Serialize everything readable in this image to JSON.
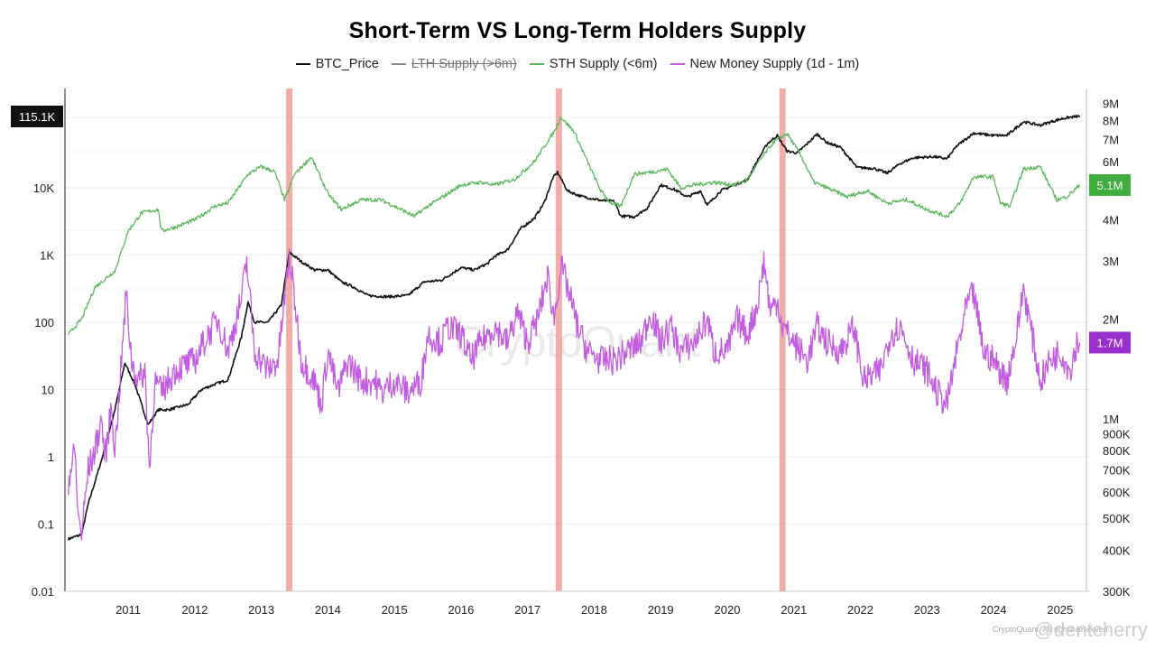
{
  "chart_data": {
    "type": "line",
    "title": "Short-Term VS Long-Term Holders Supply",
    "x_ticks": [
      "2011",
      "2012",
      "2013",
      "2014",
      "2015",
      "2016",
      "2017",
      "2018",
      "2019",
      "2020",
      "2021",
      "2022",
      "2023",
      "2024",
      "2025"
    ],
    "xlim": [
      2010.55,
      2025.95
    ],
    "y_left": {
      "scale": "log",
      "ylim": [
        0.01,
        300000
      ],
      "ticks": [
        {
          "v": 0.01,
          "label": "0.01"
        },
        {
          "v": 0.1,
          "label": "0.1"
        },
        {
          "v": 1,
          "label": "1"
        },
        {
          "v": 10,
          "label": "10"
        },
        {
          "v": 100,
          "label": "100"
        },
        {
          "v": 1000,
          "label": "1K"
        },
        {
          "v": 10000,
          "label": "10K"
        }
      ],
      "current_label": "115.1K",
      "current_value": 115100
    },
    "y_right": {
      "scale": "log",
      "ylim": [
        300000,
        10000000
      ],
      "ticks": [
        {
          "v": 300000,
          "label": "300K"
        },
        {
          "v": 400000,
          "label": "400K"
        },
        {
          "v": 500000,
          "label": "500K"
        },
        {
          "v": 600000,
          "label": "600K"
        },
        {
          "v": 700000,
          "label": "700K"
        },
        {
          "v": 800000,
          "label": "800K"
        },
        {
          "v": 900000,
          "label": "900K"
        },
        {
          "v": 1000000,
          "label": "1M"
        },
        {
          "v": 2000000,
          "label": "2M"
        },
        {
          "v": 3000000,
          "label": "3M"
        },
        {
          "v": 4000000,
          "label": "4M"
        },
        {
          "v": 6000000,
          "label": "6M"
        },
        {
          "v": 7000000,
          "label": "7M"
        },
        {
          "v": 8000000,
          "label": "8M"
        },
        {
          "v": 9000000,
          "label": "9M"
        }
      ]
    },
    "highlight_bands": [
      2013.92,
      2017.97,
      2021.33
    ],
    "series": [
      {
        "name": "BTC_Price",
        "axis": "left",
        "color": "#111111",
        "visible": true,
        "points": [
          [
            2010.6,
            0.06
          ],
          [
            2010.8,
            0.07
          ],
          [
            2010.9,
            0.2
          ],
          [
            2011.1,
            0.9
          ],
          [
            2011.3,
            5
          ],
          [
            2011.45,
            25
          ],
          [
            2011.6,
            12
          ],
          [
            2011.8,
            3
          ],
          [
            2011.95,
            5
          ],
          [
            2012.1,
            5
          ],
          [
            2012.4,
            6
          ],
          [
            2012.6,
            10
          ],
          [
            2012.8,
            12
          ],
          [
            2013.0,
            14
          ],
          [
            2013.2,
            60
          ],
          [
            2013.3,
            200
          ],
          [
            2013.4,
            100
          ],
          [
            2013.6,
            100
          ],
          [
            2013.8,
            180
          ],
          [
            2013.92,
            1100
          ],
          [
            2014.1,
            800
          ],
          [
            2014.3,
            600
          ],
          [
            2014.5,
            600
          ],
          [
            2014.7,
            400
          ],
          [
            2014.9,
            330
          ],
          [
            2015.1,
            250
          ],
          [
            2015.4,
            240
          ],
          [
            2015.7,
            250
          ],
          [
            2015.95,
            400
          ],
          [
            2016.2,
            420
          ],
          [
            2016.5,
            650
          ],
          [
            2016.7,
            600
          ],
          [
            2016.9,
            750
          ],
          [
            2017.0,
            950
          ],
          [
            2017.2,
            1200
          ],
          [
            2017.4,
            2500
          ],
          [
            2017.6,
            3500
          ],
          [
            2017.75,
            6000
          ],
          [
            2017.88,
            14000
          ],
          [
            2017.95,
            17000
          ],
          [
            2018.1,
            9000
          ],
          [
            2018.3,
            7500
          ],
          [
            2018.6,
            6500
          ],
          [
            2018.8,
            6300
          ],
          [
            2018.9,
            3800
          ],
          [
            2019.1,
            3700
          ],
          [
            2019.3,
            5000
          ],
          [
            2019.5,
            11000
          ],
          [
            2019.7,
            9500
          ],
          [
            2019.9,
            7300
          ],
          [
            2020.1,
            9000
          ],
          [
            2020.2,
            5500
          ],
          [
            2020.4,
            9000
          ],
          [
            2020.6,
            11000
          ],
          [
            2020.8,
            13000
          ],
          [
            2020.95,
            25000
          ],
          [
            2021.1,
            45000
          ],
          [
            2021.25,
            60000
          ],
          [
            2021.4,
            35000
          ],
          [
            2021.55,
            33000
          ],
          [
            2021.7,
            45000
          ],
          [
            2021.85,
            63000
          ],
          [
            2022.0,
            47000
          ],
          [
            2022.2,
            40000
          ],
          [
            2022.45,
            20000
          ],
          [
            2022.7,
            19500
          ],
          [
            2022.9,
            16500
          ],
          [
            2023.1,
            23000
          ],
          [
            2023.3,
            28000
          ],
          [
            2023.6,
            29000
          ],
          [
            2023.8,
            27000
          ],
          [
            2023.95,
            42000
          ],
          [
            2024.2,
            65000
          ],
          [
            2024.5,
            60000
          ],
          [
            2024.7,
            60000
          ],
          [
            2024.95,
            96000
          ],
          [
            2025.2,
            85000
          ],
          [
            2025.35,
            95000
          ],
          [
            2025.55,
            108000
          ],
          [
            2025.75,
            115100
          ],
          [
            2025.8,
            115100
          ]
        ]
      },
      {
        "name": "LTH Supply (>6m)",
        "axis": "right",
        "color": "#888888",
        "visible": false,
        "points": []
      },
      {
        "name": "STH Supply (<6m)",
        "axis": "right",
        "color": "#5cb85c",
        "visible": true,
        "points": [
          [
            2010.6,
            1800000
          ],
          [
            2010.8,
            2000000
          ],
          [
            2011.0,
            2500000
          ],
          [
            2011.3,
            2800000
          ],
          [
            2011.5,
            3700000
          ],
          [
            2011.7,
            4200000
          ],
          [
            2011.95,
            4300000
          ],
          [
            2012.0,
            3700000
          ],
          [
            2012.2,
            3800000
          ],
          [
            2012.5,
            4000000
          ],
          [
            2012.8,
            4400000
          ],
          [
            2013.0,
            4500000
          ],
          [
            2013.3,
            5500000
          ],
          [
            2013.5,
            5800000
          ],
          [
            2013.7,
            5600000
          ],
          [
            2013.85,
            4600000
          ],
          [
            2014.0,
            5500000
          ],
          [
            2014.25,
            6200000
          ],
          [
            2014.5,
            4800000
          ],
          [
            2014.7,
            4300000
          ],
          [
            2015.0,
            4600000
          ],
          [
            2015.3,
            4600000
          ],
          [
            2015.6,
            4300000
          ],
          [
            2015.8,
            4100000
          ],
          [
            2016.0,
            4400000
          ],
          [
            2016.3,
            4800000
          ],
          [
            2016.5,
            5100000
          ],
          [
            2016.8,
            5200000
          ],
          [
            2017.0,
            5100000
          ],
          [
            2017.3,
            5300000
          ],
          [
            2017.6,
            6000000
          ],
          [
            2017.9,
            7400000
          ],
          [
            2018.0,
            8200000
          ],
          [
            2018.2,
            7400000
          ],
          [
            2018.4,
            6000000
          ],
          [
            2018.6,
            4900000
          ],
          [
            2018.75,
            4500000
          ],
          [
            2018.9,
            4400000
          ],
          [
            2019.1,
            5500000
          ],
          [
            2019.4,
            5600000
          ],
          [
            2019.6,
            5700000
          ],
          [
            2019.8,
            5000000
          ],
          [
            2020.0,
            5100000
          ],
          [
            2020.3,
            5200000
          ],
          [
            2020.6,
            5100000
          ],
          [
            2020.8,
            5300000
          ],
          [
            2021.0,
            6100000
          ],
          [
            2021.2,
            6900000
          ],
          [
            2021.4,
            7300000
          ],
          [
            2021.6,
            6300000
          ],
          [
            2021.8,
            5200000
          ],
          [
            2022.0,
            5000000
          ],
          [
            2022.3,
            4700000
          ],
          [
            2022.6,
            4900000
          ],
          [
            2022.9,
            4500000
          ],
          [
            2023.2,
            4600000
          ],
          [
            2023.5,
            4300000
          ],
          [
            2023.8,
            4100000
          ],
          [
            2024.0,
            4500000
          ],
          [
            2024.2,
            5400000
          ],
          [
            2024.5,
            5400000
          ],
          [
            2024.6,
            4500000
          ],
          [
            2024.75,
            4400000
          ],
          [
            2024.95,
            5700000
          ],
          [
            2025.2,
            5800000
          ],
          [
            2025.45,
            4600000
          ],
          [
            2025.6,
            4700000
          ],
          [
            2025.8,
            5100000
          ]
        ]
      },
      {
        "name": "New Money Supply (1d - 1m)",
        "axis": "right",
        "color": "#c25ce0",
        "visible": true,
        "points": [
          [
            2010.6,
            650000
          ],
          [
            2010.7,
            800000
          ],
          [
            2010.75,
            500000
          ],
          [
            2010.8,
            450000
          ],
          [
            2010.9,
            700000
          ],
          [
            2011.0,
            800000
          ],
          [
            2011.1,
            1000000
          ],
          [
            2011.15,
            750000
          ],
          [
            2011.25,
            1100000
          ],
          [
            2011.3,
            800000
          ],
          [
            2011.4,
            1500000
          ],
          [
            2011.47,
            2400000
          ],
          [
            2011.55,
            1500000
          ],
          [
            2011.65,
            1300000
          ],
          [
            2011.75,
            1400000
          ],
          [
            2011.82,
            700000
          ],
          [
            2011.9,
            1300000
          ],
          [
            2012.0,
            1200000
          ],
          [
            2012.2,
            1400000
          ],
          [
            2012.5,
            1500000
          ],
          [
            2012.7,
            1800000
          ],
          [
            2012.85,
            2000000
          ],
          [
            2013.0,
            1600000
          ],
          [
            2013.2,
            2300000
          ],
          [
            2013.28,
            3000000
          ],
          [
            2013.4,
            1600000
          ],
          [
            2013.6,
            1400000
          ],
          [
            2013.75,
            1500000
          ],
          [
            2013.92,
            3100000
          ],
          [
            2014.0,
            2300000
          ],
          [
            2014.1,
            1500000
          ],
          [
            2014.3,
            1300000
          ],
          [
            2014.4,
            1100000
          ],
          [
            2014.5,
            1600000
          ],
          [
            2014.65,
            1200000
          ],
          [
            2014.8,
            1500000
          ],
          [
            2015.0,
            1300000
          ],
          [
            2015.2,
            1300000
          ],
          [
            2015.3,
            1200000
          ],
          [
            2015.5,
            1300000
          ],
          [
            2015.7,
            1200000
          ],
          [
            2015.9,
            1300000
          ],
          [
            2016.0,
            1800000
          ],
          [
            2016.2,
            1700000
          ],
          [
            2016.3,
            1900000
          ],
          [
            2016.5,
            1800000
          ],
          [
            2016.65,
            1500000
          ],
          [
            2016.8,
            1700000
          ],
          [
            2017.0,
            1900000
          ],
          [
            2017.2,
            1700000
          ],
          [
            2017.35,
            2100000
          ],
          [
            2017.5,
            1700000
          ],
          [
            2017.65,
            2000000
          ],
          [
            2017.8,
            2700000
          ],
          [
            2017.9,
            2000000
          ],
          [
            2018.0,
            2900000
          ],
          [
            2018.1,
            2500000
          ],
          [
            2018.25,
            1900000
          ],
          [
            2018.4,
            1600000
          ],
          [
            2018.6,
            1500000
          ],
          [
            2018.8,
            1500000
          ],
          [
            2019.0,
            1600000
          ],
          [
            2019.2,
            1700000
          ],
          [
            2019.35,
            2100000
          ],
          [
            2019.5,
            1700000
          ],
          [
            2019.65,
            1900000
          ],
          [
            2019.8,
            1600000
          ],
          [
            2020.0,
            1700000
          ],
          [
            2020.2,
            2000000
          ],
          [
            2020.3,
            1600000
          ],
          [
            2020.5,
            1600000
          ],
          [
            2020.65,
            2000000
          ],
          [
            2020.8,
            1800000
          ],
          [
            2020.95,
            2200000
          ],
          [
            2021.05,
            3000000
          ],
          [
            2021.15,
            2100000
          ],
          [
            2021.25,
            2300000
          ],
          [
            2021.33,
            1900000
          ],
          [
            2021.5,
            1700000
          ],
          [
            2021.7,
            1500000
          ],
          [
            2021.85,
            1900000
          ],
          [
            2022.0,
            1700000
          ],
          [
            2022.2,
            1600000
          ],
          [
            2022.4,
            1900000
          ],
          [
            2022.55,
            1300000
          ],
          [
            2022.8,
            1400000
          ],
          [
            2022.95,
            1800000
          ],
          [
            2023.1,
            1900000
          ],
          [
            2023.3,
            1500000
          ],
          [
            2023.5,
            1400000
          ],
          [
            2023.65,
            1200000
          ],
          [
            2023.8,
            1100000
          ],
          [
            2023.95,
            1600000
          ],
          [
            2024.1,
            2200000
          ],
          [
            2024.2,
            2400000
          ],
          [
            2024.35,
            1600000
          ],
          [
            2024.5,
            1500000
          ],
          [
            2024.7,
            1300000
          ],
          [
            2024.85,
            1800000
          ],
          [
            2024.95,
            2500000
          ],
          [
            2025.1,
            1700000
          ],
          [
            2025.2,
            1300000
          ],
          [
            2025.35,
            1500000
          ],
          [
            2025.5,
            1600000
          ],
          [
            2025.65,
            1400000
          ],
          [
            2025.75,
            1700000
          ],
          [
            2025.8,
            1700000
          ]
        ]
      }
    ],
    "badges": [
      {
        "text": "115.1K",
        "axis": "left",
        "value": 115100,
        "color": "#111111"
      },
      {
        "text": "5.1M",
        "axis": "right",
        "value": 5100000,
        "color": "#3fae3f"
      },
      {
        "text": "1.7M",
        "axis": "right",
        "value": 1700000,
        "color": "#9a2fd0"
      }
    ],
    "watermark": "CryptoQuant",
    "credit": "@dentcherry",
    "source_note": "CryptoQuant. All rights reserved."
  }
}
